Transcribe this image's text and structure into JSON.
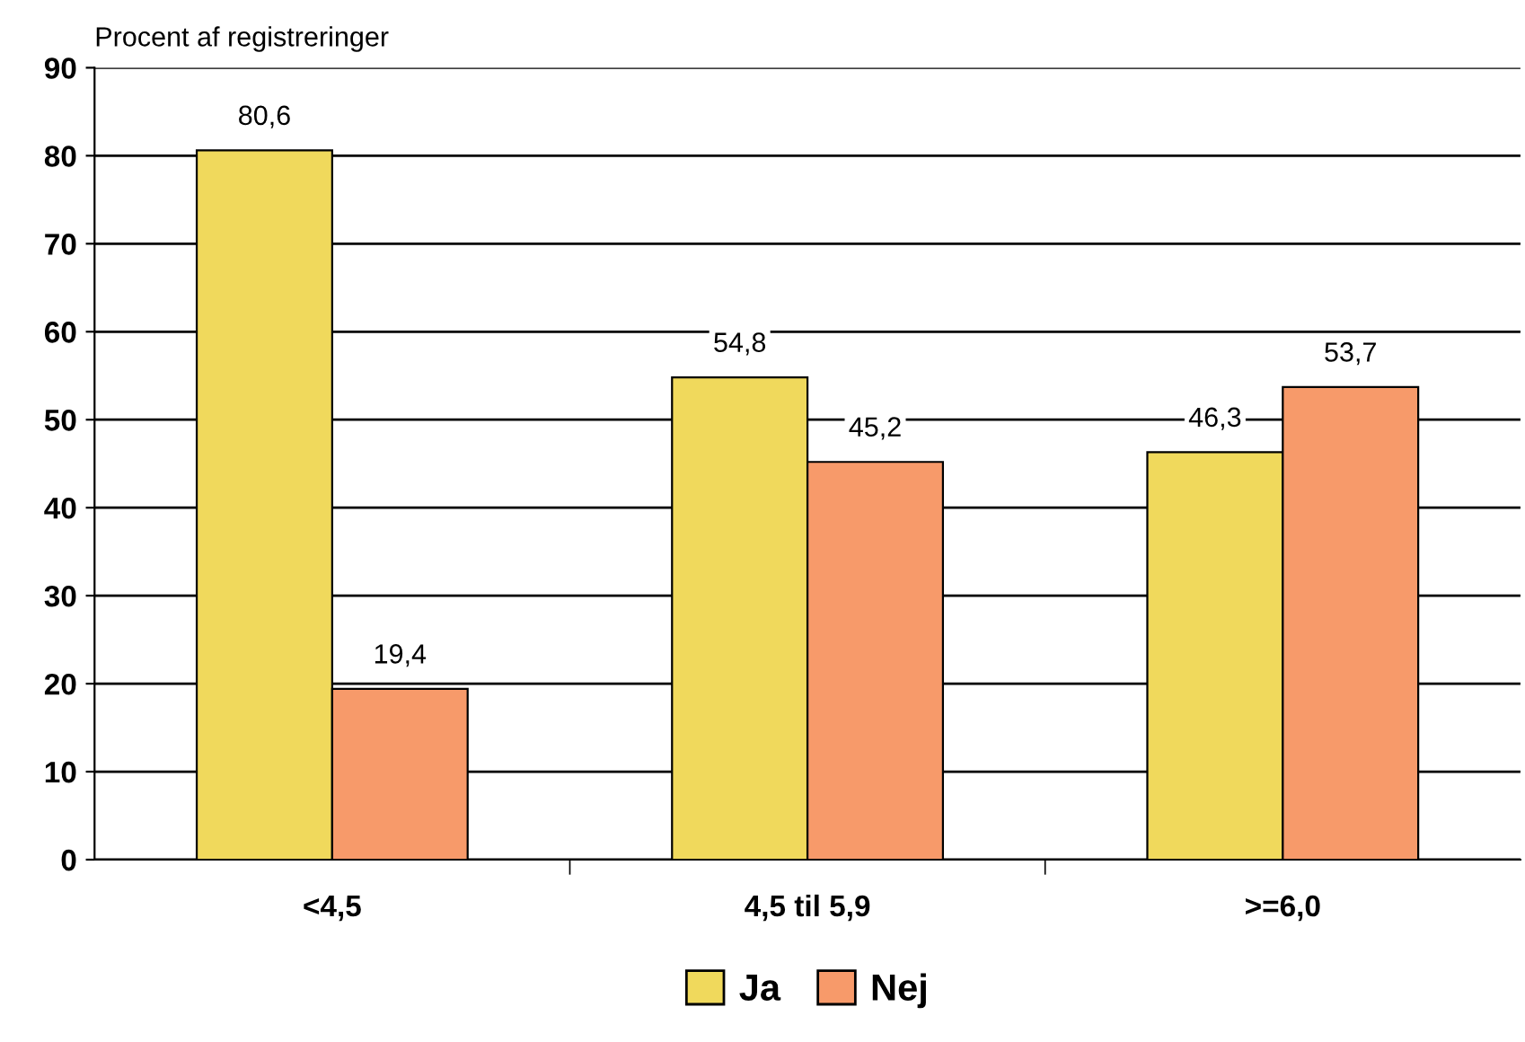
{
  "chart_data": {
    "type": "bar",
    "ylabel": "Procent af registreringer",
    "categories": [
      "<4,5",
      "4,5 til 5,9",
      ">=6,0"
    ],
    "series": [
      {
        "name": "Ja",
        "color": "#f0d95c",
        "values": [
          80.6,
          54.8,
          46.3
        ],
        "value_labels": [
          "80,6",
          "54,8",
          "46,3"
        ]
      },
      {
        "name": "Nej",
        "color": "#f79a6a",
        "values": [
          19.4,
          45.2,
          53.7
        ],
        "value_labels": [
          "19,4",
          "45,2",
          "53,7"
        ]
      }
    ],
    "ylim": [
      0,
      90
    ],
    "yticks": [
      0,
      10,
      20,
      30,
      40,
      50,
      60,
      70,
      80,
      90
    ],
    "grid": "y",
    "legend": "bottom"
  }
}
